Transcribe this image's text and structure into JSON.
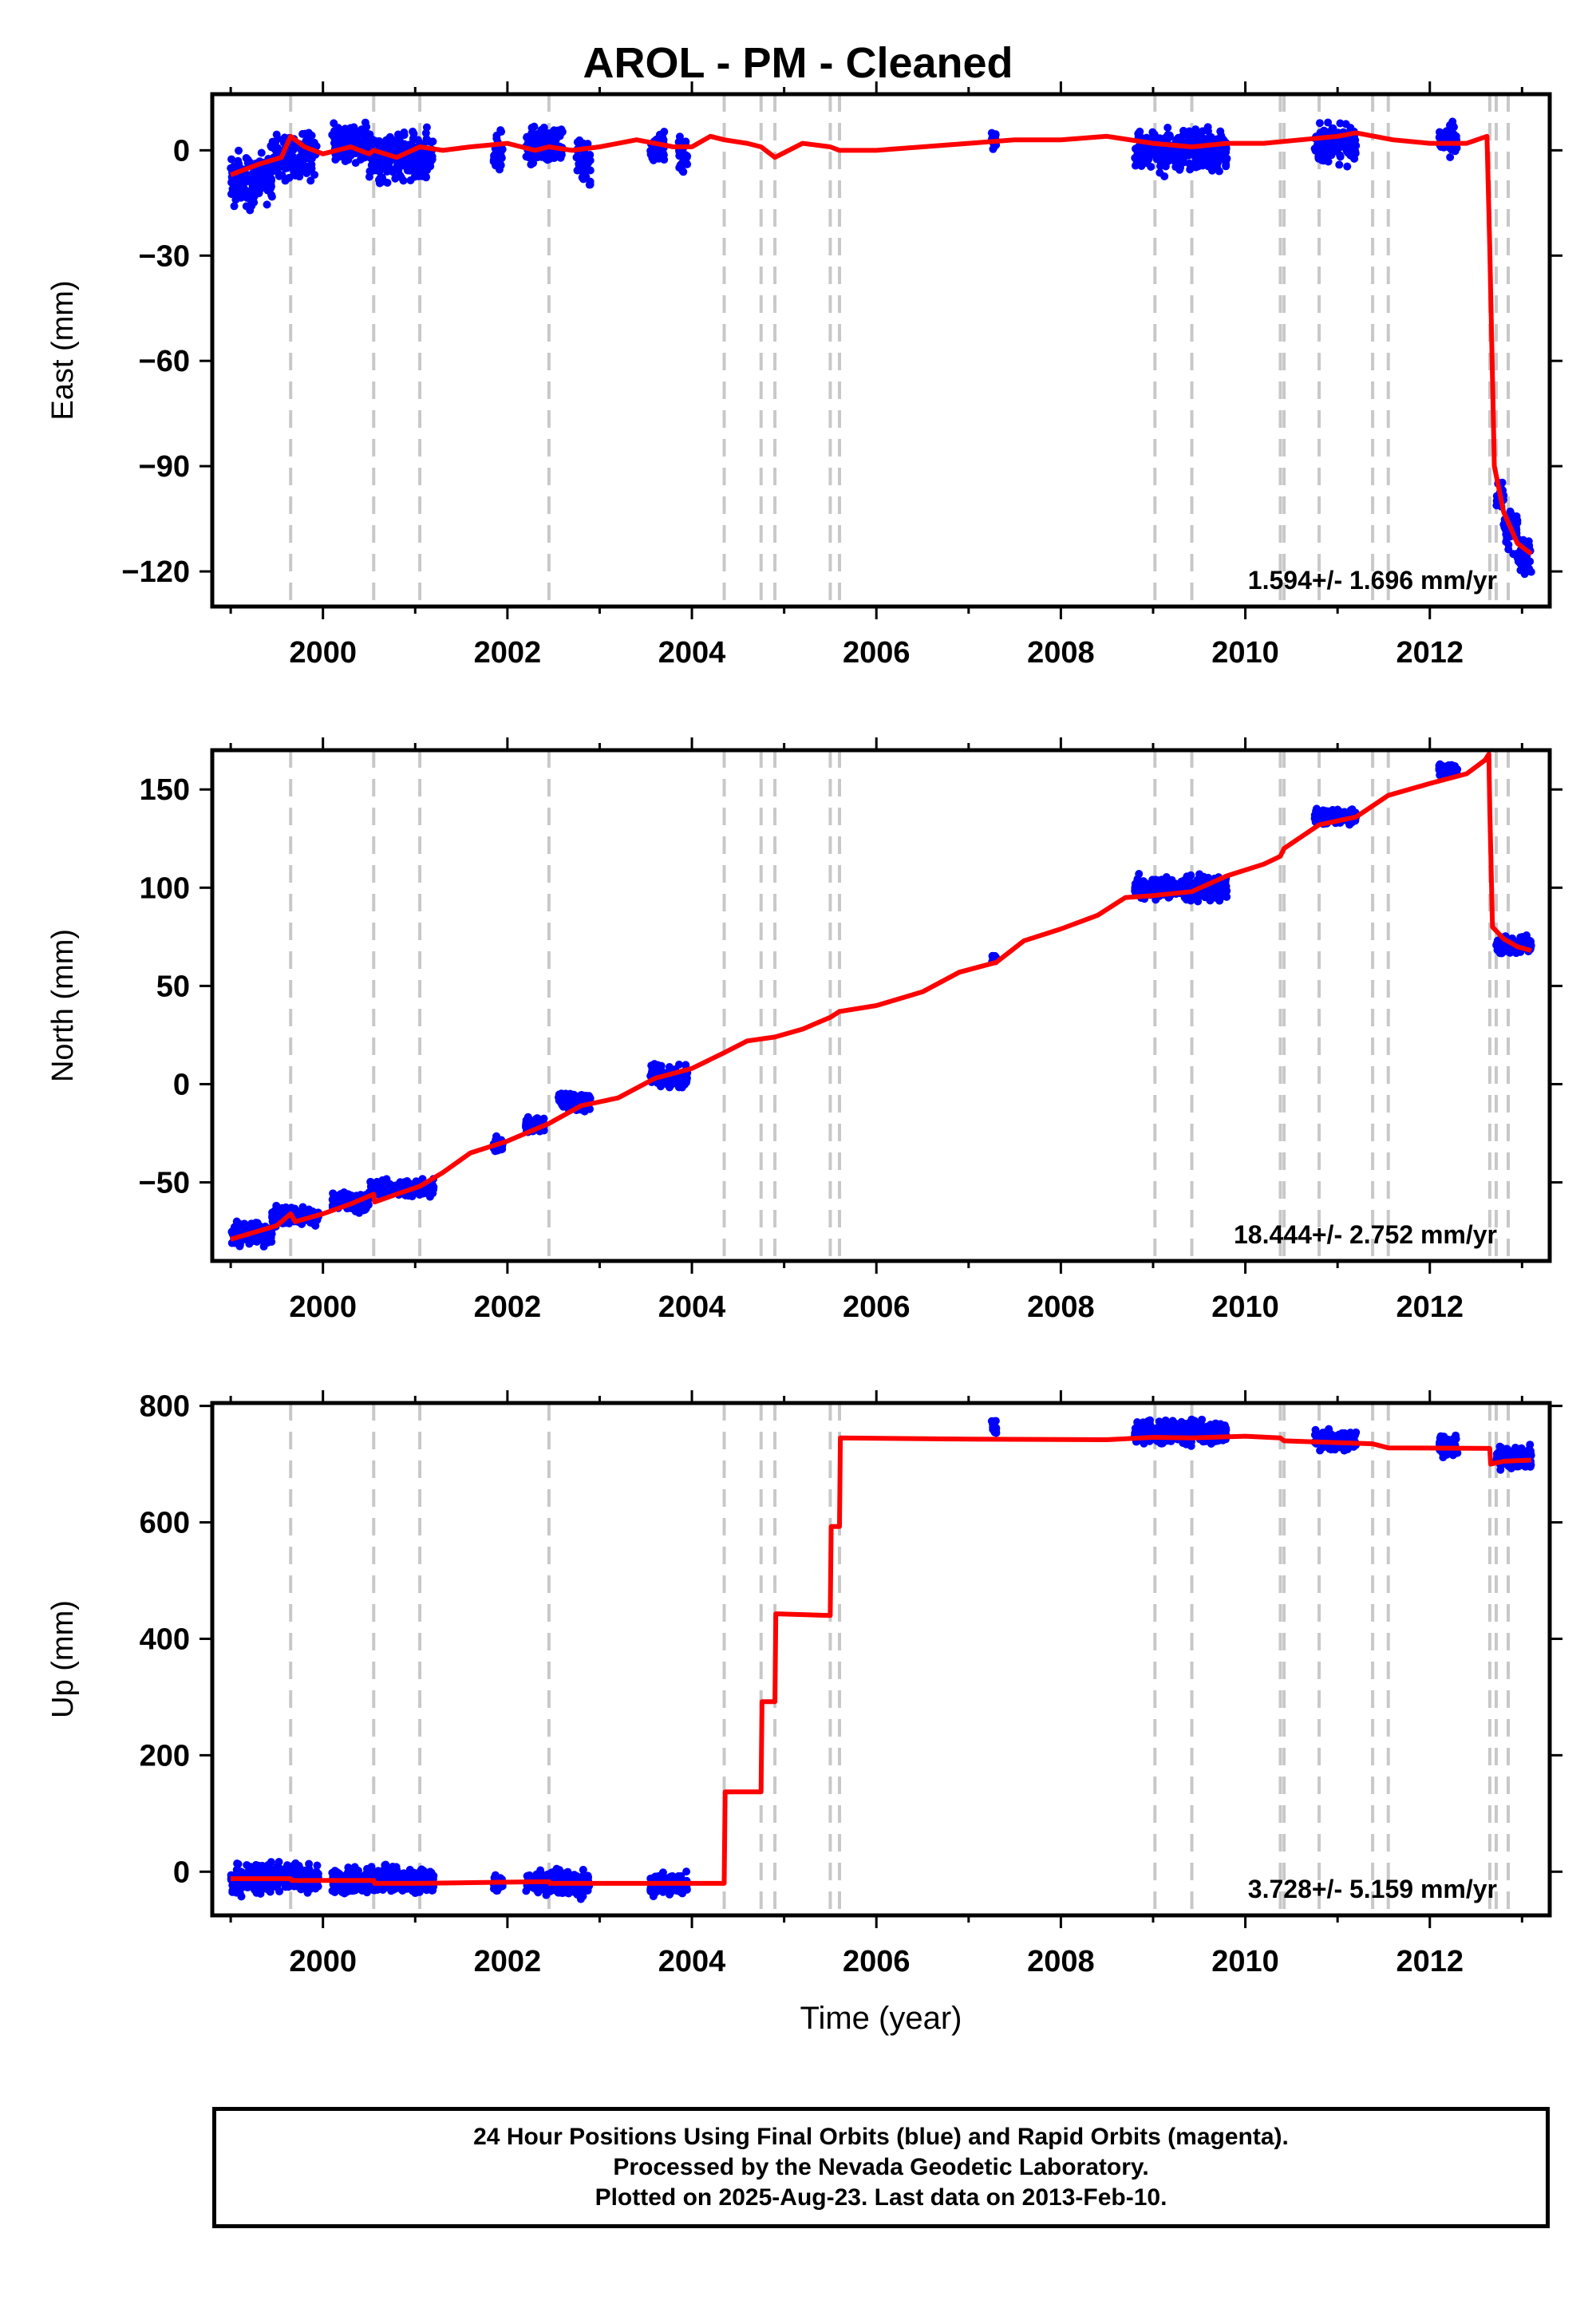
{
  "title": "AROL  - PM - Cleaned",
  "xlabel": "Time (year)",
  "footer": {
    "line1": "24 Hour Positions Using Final Orbits (blue) and Rapid Orbits (magenta).",
    "line2": "Processed by the Nevada Geodetic Laboratory.",
    "line3": "Plotted on 2025-Aug-23. Last data on 2013-Feb-10."
  },
  "colors": {
    "data": "#0000ff",
    "model": "#ff0000",
    "steps": "#c8c8c8",
    "axis": "#000000"
  },
  "chart_data": [
    {
      "type": "scatter",
      "ylabel": "East (mm)",
      "rate_label": "1.594+/- 1.696 mm/yr",
      "xlim": [
        1998.8,
        2013.3
      ],
      "ylim": [
        -130,
        16
      ],
      "yticks": [
        0,
        -30,
        -60,
        -90,
        -120
      ],
      "ytick_labels": [
        "0",
        "−30",
        "−60",
        "−90",
        "−120"
      ],
      "xticks": [
        2000,
        2002,
        2004,
        2006,
        2008,
        2010,
        2012
      ],
      "step_lines": [
        1999.65,
        2000.55,
        2001.05,
        2002.45,
        2004.35,
        2004.75,
        2004.9,
        2005.5,
        2005.6,
        2009.02,
        2009.42,
        2010.38,
        2010.42,
        2010.8,
        2011.38,
        2011.55,
        2012.65,
        2012.72,
        2012.85
      ],
      "clusters": [
        {
          "x0": 1999.0,
          "x1": 1999.45,
          "center": -8,
          "spread": 6
        },
        {
          "x0": 1999.45,
          "x1": 1999.95,
          "center": -1,
          "spread": 5
        },
        {
          "x0": 2000.1,
          "x1": 2000.5,
          "center": 2,
          "spread": 4
        },
        {
          "x0": 2000.5,
          "x1": 2001.2,
          "center": -2,
          "spread": 5
        },
        {
          "x0": 2001.85,
          "x1": 2001.95,
          "center": 0,
          "spread": 4
        },
        {
          "x0": 2002.2,
          "x1": 2002.6,
          "center": 1,
          "spread": 4
        },
        {
          "x0": 2002.75,
          "x1": 2002.9,
          "center": -3,
          "spread": 4
        },
        {
          "x0": 2003.55,
          "x1": 2003.7,
          "center": 1,
          "spread": 3
        },
        {
          "x0": 2003.85,
          "x1": 2003.95,
          "center": -2,
          "spread": 4
        },
        {
          "x0": 2007.25,
          "x1": 2007.3,
          "center": 3,
          "spread": 2
        },
        {
          "x0": 2008.8,
          "x1": 2009.8,
          "center": 0,
          "spread": 4
        },
        {
          "x0": 2010.75,
          "x1": 2011.2,
          "center": 2,
          "spread": 4
        },
        {
          "x0": 2012.1,
          "x1": 2012.3,
          "center": 3,
          "spread": 3
        },
        {
          "x0": 2012.72,
          "x1": 2012.8,
          "center": -98,
          "spread": 4
        },
        {
          "x0": 2012.8,
          "x1": 2012.95,
          "center": -108,
          "spread": 4
        },
        {
          "x0": 2012.95,
          "x1": 2013.1,
          "center": -116,
          "spread": 4
        }
      ],
      "model": [
        [
          1999.0,
          -7
        ],
        [
          1999.3,
          -4
        ],
        [
          1999.55,
          -2
        ],
        [
          1999.65,
          4
        ],
        [
          1999.8,
          1
        ],
        [
          2000.0,
          -1
        ],
        [
          2000.3,
          1
        ],
        [
          2000.5,
          -1
        ],
        [
          2000.55,
          0
        ],
        [
          2000.8,
          -2
        ],
        [
          2001.05,
          1
        ],
        [
          2001.3,
          0
        ],
        [
          2001.6,
          1
        ],
        [
          2002.0,
          2
        ],
        [
          2002.3,
          0
        ],
        [
          2002.45,
          1
        ],
        [
          2002.7,
          0
        ],
        [
          2003.0,
          1
        ],
        [
          2003.4,
          3
        ],
        [
          2003.8,
          1
        ],
        [
          2004.0,
          1
        ],
        [
          2004.2,
          4
        ],
        [
          2004.35,
          3
        ],
        [
          2004.6,
          2
        ],
        [
          2004.75,
          1
        ],
        [
          2004.9,
          -2
        ],
        [
          2005.2,
          2
        ],
        [
          2005.5,
          1
        ],
        [
          2005.6,
          0
        ],
        [
          2006.0,
          0
        ],
        [
          2006.5,
          1
        ],
        [
          2007.0,
          2
        ],
        [
          2007.5,
          3
        ],
        [
          2008.0,
          3
        ],
        [
          2008.5,
          4
        ],
        [
          2009.0,
          2
        ],
        [
          2009.42,
          1
        ],
        [
          2009.8,
          2
        ],
        [
          2010.2,
          2
        ],
        [
          2010.6,
          3
        ],
        [
          2011.0,
          4
        ],
        [
          2011.2,
          5
        ],
        [
          2011.6,
          3
        ],
        [
          2012.0,
          2
        ],
        [
          2012.4,
          2
        ],
        [
          2012.62,
          4
        ],
        [
          2012.65,
          -28
        ],
        [
          2012.7,
          -90
        ],
        [
          2012.8,
          -103
        ],
        [
          2012.95,
          -112
        ],
        [
          2013.1,
          -115
        ]
      ]
    },
    {
      "type": "scatter",
      "ylabel": "North (mm)",
      "rate_label": "18.444+/- 2.752 mm/yr",
      "xlim": [
        1998.8,
        2013.3
      ],
      "ylim": [
        -90,
        170
      ],
      "yticks": [
        150,
        100,
        50,
        0,
        -50
      ],
      "ytick_labels": [
        "150",
        "100",
        "50",
        "0",
        "−50"
      ],
      "xticks": [
        2000,
        2002,
        2004,
        2006,
        2008,
        2010,
        2012
      ],
      "step_lines": [
        1999.65,
        2000.55,
        2001.05,
        2002.45,
        2004.35,
        2004.75,
        2004.9,
        2005.5,
        2005.6,
        2009.02,
        2009.42,
        2010.38,
        2010.42,
        2010.8,
        2011.38,
        2011.55,
        2012.65,
        2012.72,
        2012.85
      ],
      "clusters": [
        {
          "x0": 1999.0,
          "x1": 1999.45,
          "center": -76,
          "spread": 4
        },
        {
          "x0": 1999.45,
          "x1": 1999.95,
          "center": -67,
          "spread": 3
        },
        {
          "x0": 2000.1,
          "x1": 2000.5,
          "center": -60,
          "spread": 3
        },
        {
          "x0": 2000.5,
          "x1": 2001.2,
          "center": -53,
          "spread": 3
        },
        {
          "x0": 2001.85,
          "x1": 2001.95,
          "center": -31,
          "spread": 3
        },
        {
          "x0": 2002.2,
          "x1": 2002.4,
          "center": -21,
          "spread": 3
        },
        {
          "x0": 2002.55,
          "x1": 2002.9,
          "center": -9,
          "spread": 3
        },
        {
          "x0": 2003.55,
          "x1": 2003.95,
          "center": 4,
          "spread": 4
        },
        {
          "x0": 2007.25,
          "x1": 2007.3,
          "center": 64,
          "spread": 2
        },
        {
          "x0": 2008.8,
          "x1": 2009.8,
          "center": 100,
          "spread": 4
        },
        {
          "x0": 2010.75,
          "x1": 2011.2,
          "center": 136,
          "spread": 3
        },
        {
          "x0": 2012.1,
          "x1": 2012.3,
          "center": 160,
          "spread": 2
        },
        {
          "x0": 2012.72,
          "x1": 2013.1,
          "center": 71,
          "spread": 3
        }
      ],
      "model": [
        [
          1999.0,
          -79
        ],
        [
          1999.5,
          -72
        ],
        [
          1999.65,
          -66
        ],
        [
          1999.7,
          -70
        ],
        [
          2000.0,
          -66
        ],
        [
          2000.3,
          -61
        ],
        [
          2000.55,
          -56
        ],
        [
          2000.56,
          -60
        ],
        [
          2000.8,
          -56
        ],
        [
          2001.05,
          -52
        ],
        [
          2001.3,
          -45
        ],
        [
          2001.6,
          -35
        ],
        [
          2002.0,
          -29
        ],
        [
          2002.45,
          -20
        ],
        [
          2002.8,
          -11
        ],
        [
          2003.2,
          -7
        ],
        [
          2003.6,
          3
        ],
        [
          2004.0,
          8
        ],
        [
          2004.35,
          16
        ],
        [
          2004.6,
          22
        ],
        [
          2004.9,
          24
        ],
        [
          2005.2,
          28
        ],
        [
          2005.5,
          34
        ],
        [
          2005.6,
          37
        ],
        [
          2006.0,
          40
        ],
        [
          2006.5,
          47
        ],
        [
          2006.9,
          57
        ],
        [
          2007.3,
          62
        ],
        [
          2007.6,
          73
        ],
        [
          2008.0,
          79
        ],
        [
          2008.4,
          86
        ],
        [
          2008.7,
          95
        ],
        [
          2009.0,
          96
        ],
        [
          2009.42,
          98
        ],
        [
          2009.8,
          106
        ],
        [
          2010.2,
          112
        ],
        [
          2010.38,
          116
        ],
        [
          2010.42,
          120
        ],
        [
          2010.8,
          132
        ],
        [
          2011.2,
          136
        ],
        [
          2011.55,
          147
        ],
        [
          2012.0,
          153
        ],
        [
          2012.4,
          158
        ],
        [
          2012.6,
          165
        ],
        [
          2012.64,
          168
        ],
        [
          2012.65,
          140
        ],
        [
          2012.68,
          80
        ],
        [
          2012.8,
          74
        ],
        [
          2012.95,
          70
        ],
        [
          2013.1,
          68
        ]
      ]
    },
    {
      "type": "scatter",
      "ylabel": "Up (mm)",
      "rate_label": "3.728+/- 5.159 mm/yr",
      "xlim": [
        1998.8,
        2013.3
      ],
      "ylim": [
        -75,
        805
      ],
      "yticks": [
        800,
        600,
        400,
        200,
        0
      ],
      "ytick_labels": [
        "800",
        "600",
        "400",
        "200",
        "0"
      ],
      "xticks": [
        2000,
        2002,
        2004,
        2006,
        2008,
        2010,
        2012
      ],
      "xlabel_shown": true,
      "step_lines": [
        1999.65,
        2000.55,
        2001.05,
        2002.45,
        2004.35,
        2004.75,
        2004.9,
        2005.5,
        2005.6,
        2009.02,
        2009.42,
        2010.38,
        2010.42,
        2010.8,
        2011.38,
        2011.55,
        2012.65,
        2012.72,
        2012.85
      ],
      "clusters": [
        {
          "x0": 1999.0,
          "x1": 1999.95,
          "center": -12,
          "spread": 18
        },
        {
          "x0": 2000.1,
          "x1": 2001.2,
          "center": -15,
          "spread": 16
        },
        {
          "x0": 2001.85,
          "x1": 2001.95,
          "center": -18,
          "spread": 14
        },
        {
          "x0": 2002.2,
          "x1": 2002.9,
          "center": -20,
          "spread": 16
        },
        {
          "x0": 2003.55,
          "x1": 2003.95,
          "center": -22,
          "spread": 14
        },
        {
          "x0": 2007.25,
          "x1": 2007.3,
          "center": 765,
          "spread": 10
        },
        {
          "x0": 2008.8,
          "x1": 2009.8,
          "center": 755,
          "spread": 14
        },
        {
          "x0": 2010.75,
          "x1": 2011.2,
          "center": 740,
          "spread": 12
        },
        {
          "x0": 2012.1,
          "x1": 2012.3,
          "center": 730,
          "spread": 12
        },
        {
          "x0": 2012.72,
          "x1": 2013.1,
          "center": 712,
          "spread": 14
        }
      ],
      "model": [
        [
          1999.0,
          -12
        ],
        [
          1999.65,
          -12
        ],
        [
          1999.66,
          -15
        ],
        [
          2000.55,
          -15
        ],
        [
          2000.56,
          -20
        ],
        [
          2001.05,
          -20
        ],
        [
          2002.0,
          -18
        ],
        [
          2002.45,
          -17
        ],
        [
          2002.46,
          -20
        ],
        [
          2004.35,
          -20
        ],
        [
          2004.36,
          137
        ],
        [
          2004.75,
          137
        ],
        [
          2004.76,
          292
        ],
        [
          2004.9,
          292
        ],
        [
          2004.91,
          443
        ],
        [
          2005.5,
          440
        ],
        [
          2005.51,
          593
        ],
        [
          2005.6,
          593
        ],
        [
          2005.61,
          745
        ],
        [
          2007.0,
          743
        ],
        [
          2008.5,
          742
        ],
        [
          2009.0,
          746
        ],
        [
          2009.42,
          745
        ],
        [
          2010.0,
          748
        ],
        [
          2010.38,
          745
        ],
        [
          2010.42,
          740
        ],
        [
          2010.8,
          738
        ],
        [
          2011.38,
          735
        ],
        [
          2011.55,
          728
        ],
        [
          2012.65,
          727
        ],
        [
          2012.66,
          700
        ],
        [
          2012.8,
          705
        ],
        [
          2013.1,
          707
        ]
      ]
    }
  ]
}
